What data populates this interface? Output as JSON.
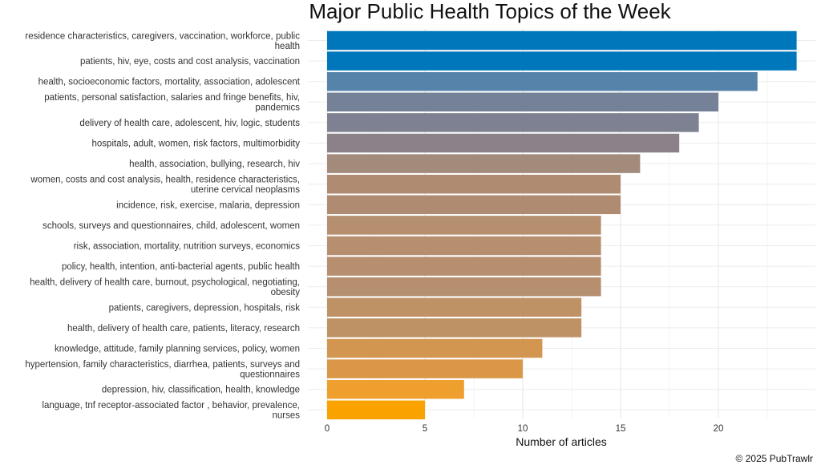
{
  "chart_data": {
    "type": "bar",
    "orientation": "horizontal",
    "title": "Major Public Health Topics of the Week",
    "xlabel": "Number of articles",
    "ylabel": "",
    "xlim": [
      0,
      25
    ],
    "xticks": [
      0,
      5,
      10,
      15,
      20
    ],
    "grid": true,
    "caption": "© 2025 PubTrawlr",
    "categories": [
      [
        "residence characteristics, caregivers, vaccination, workforce, public",
        "health"
      ],
      [
        "patients, hiv, eye, costs and cost analysis, vaccination"
      ],
      [
        "health, socioeconomic factors, mortality, association, adolescent"
      ],
      [
        "patients, personal satisfaction, salaries and fringe benefits, hiv,",
        "pandemics"
      ],
      [
        "delivery of health care, adolescent, hiv, logic, students"
      ],
      [
        "hospitals, adult, women, risk factors, multimorbidity"
      ],
      [
        "health, association, bullying, research, hiv"
      ],
      [
        "women, costs and cost analysis, health, residence characteristics,",
        "uterine cervical neoplasms"
      ],
      [
        "incidence, risk, exercise, malaria, depression"
      ],
      [
        "schools, surveys and questionnaires, child, adolescent, women"
      ],
      [
        "risk, association, mortality, nutrition surveys, economics"
      ],
      [
        "policy, health, intention, anti-bacterial agents, public health"
      ],
      [
        "health, delivery of health care, burnout, psychological, negotiating,",
        "obesity"
      ],
      [
        "patients, caregivers, depression, hospitals, risk"
      ],
      [
        "health, delivery of health care, patients, literacy, research"
      ],
      [
        "knowledge, attitude, family planning services, policy, women"
      ],
      [
        "hypertension, family characteristics, diarrhea, patients, surveys and",
        "questionnaires"
      ],
      [
        "depression, hiv, classification, health, knowledge"
      ],
      [
        "language, tnf receptor-associated factor , behavior, prevalence,",
        "nurses"
      ]
    ],
    "values": [
      24,
      24,
      22,
      20,
      19,
      18,
      16,
      15,
      15,
      14,
      14,
      14,
      14,
      13,
      13,
      11,
      10,
      7,
      5
    ],
    "colors": [
      "#0077BB",
      "#0077BB",
      "#5683AA",
      "#748196",
      "#7E8191",
      "#8A8288",
      "#A38B7C",
      "#AF8C71",
      "#AF8C71",
      "#B68F6E",
      "#B68F6E",
      "#B68F6E",
      "#B68F6E",
      "#BE9265",
      "#BE9265",
      "#D39650",
      "#DA9748",
      "#EE9F2E",
      "#FAA300"
    ]
  }
}
